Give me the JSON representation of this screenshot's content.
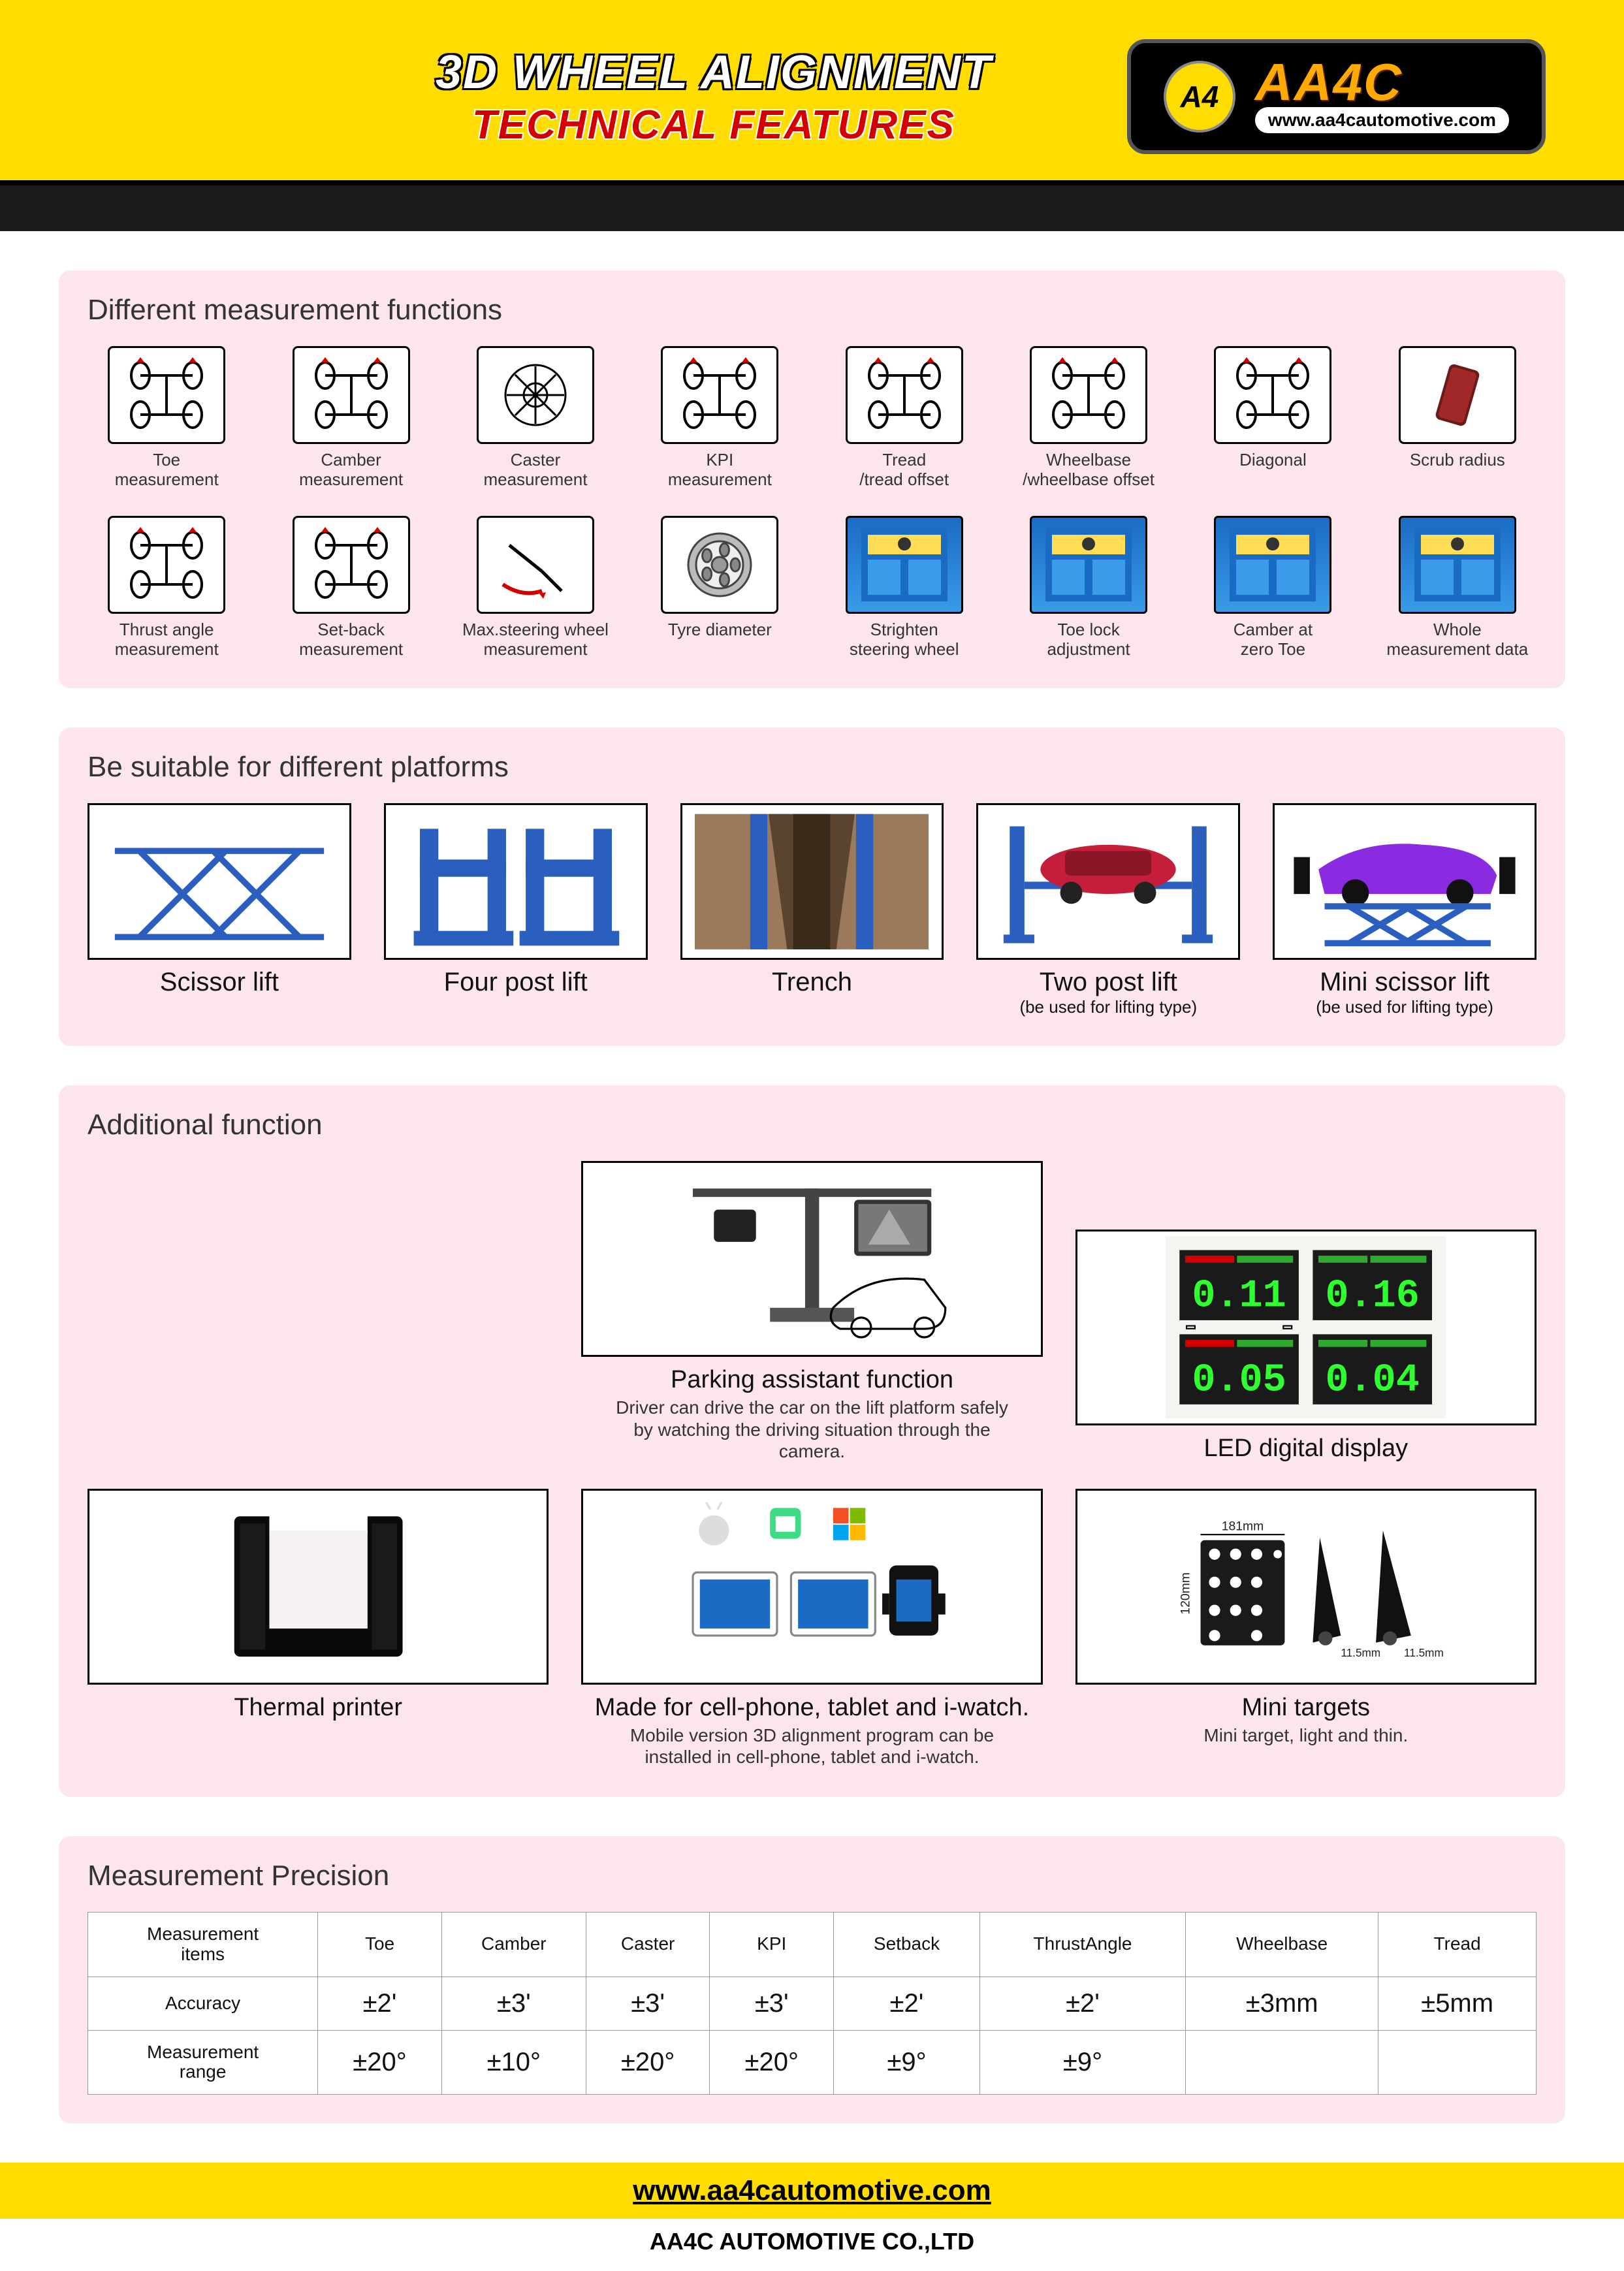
{
  "header": {
    "title1": "3D WHEEL ALIGNMENT",
    "title2": "TECHNICAL FEATURES",
    "logo_mark": "A4",
    "logo_brand": "AA4C",
    "logo_url": "www.aa4cautomotive.com"
  },
  "colors": {
    "yellow": "#ffdd00",
    "red": "#d40000",
    "panel_bg": "#fce6ec",
    "dark": "#1a1a1a",
    "blue_lift": "#2a5fbf",
    "orange": "#ffaa00"
  },
  "section1": {
    "title": "Different measurement functions",
    "items": [
      {
        "label": "Toe\nmeasurement",
        "type": "diagram"
      },
      {
        "label": "Camber\nmeasurement",
        "type": "diagram"
      },
      {
        "label": "Caster\nmeasurement",
        "type": "wheel"
      },
      {
        "label": "KPI\nmeasurement",
        "type": "diagram"
      },
      {
        "label": "Tread\n/tread offset",
        "type": "diagram"
      },
      {
        "label": "Wheelbase\n/wheelbase offset",
        "type": "diagram"
      },
      {
        "label": "Diagonal",
        "type": "diagram"
      },
      {
        "label": "Scrub radius",
        "type": "tilt"
      },
      {
        "label": "Thrust angle\nmeasurement",
        "type": "diagram"
      },
      {
        "label": "Set-back\nmeasurement",
        "type": "diagram"
      },
      {
        "label": "Max.steering wheel\nmeasurement",
        "type": "steer"
      },
      {
        "label": "Tyre diameter",
        "type": "wheel2"
      },
      {
        "label": "Strighten\nsteering wheel",
        "type": "screen"
      },
      {
        "label": "Toe lock\nadjustment",
        "type": "screen"
      },
      {
        "label": "Camber at\nzero Toe",
        "type": "screen"
      },
      {
        "label": "Whole\nmeasurement data",
        "type": "screen"
      }
    ]
  },
  "section2": {
    "title": "Be suitable for different platforms",
    "items": [
      {
        "label": "Scissor lift",
        "sub": ""
      },
      {
        "label": "Four post lift",
        "sub": ""
      },
      {
        "label": "Trench",
        "sub": ""
      },
      {
        "label": "Two post lift",
        "sub": "(be used for lifting type)"
      },
      {
        "label": "Mini scissor lift",
        "sub": "(be used for lifting type)"
      }
    ]
  },
  "section3": {
    "title": "Additional function",
    "top": [
      {
        "label": "",
        "desc": ""
      },
      {
        "label": "Parking assistant function",
        "desc": "Driver can drive the car on the lift platform safely by watching the driving situation through the camera."
      },
      {
        "label": "LED digital display",
        "desc": ""
      }
    ],
    "bot": [
      {
        "label": "Thermal printer",
        "desc": ""
      },
      {
        "label": "Made for cell-phone, tablet and i-watch.",
        "desc": "Mobile version 3D alignment program can be installed in cell-phone, tablet and i-watch."
      },
      {
        "label": "Mini targets",
        "desc": "Mini target, light and thin."
      }
    ],
    "led_values": [
      "0.11",
      "0.16",
      "0.05",
      "0.04"
    ],
    "target_dims": {
      "w": "181mm",
      "h": "120mm",
      "t": "11.5mm"
    }
  },
  "section4": {
    "title": "Measurement Precision",
    "columns": [
      "Measurement\nitems",
      "Toe",
      "Camber",
      "Caster",
      "KPI",
      "Setback",
      "ThrustAngle",
      "Wheelbase",
      "Tread"
    ],
    "rows": [
      {
        "label": "Accuracy",
        "values": [
          "±2'",
          "±3'",
          "±3'",
          "±3'",
          "±2'",
          "±2'",
          "±3mm",
          "±5mm"
        ]
      },
      {
        "label": "Measurement\nrange",
        "values": [
          "±20°",
          "±10°",
          "±20°",
          "±20°",
          "±9°",
          "±9°",
          "",
          ""
        ]
      }
    ]
  },
  "footer": {
    "url": "www.aa4cautomotive.com",
    "company": "AA4C AUTOMOTIVE CO.,LTD"
  }
}
